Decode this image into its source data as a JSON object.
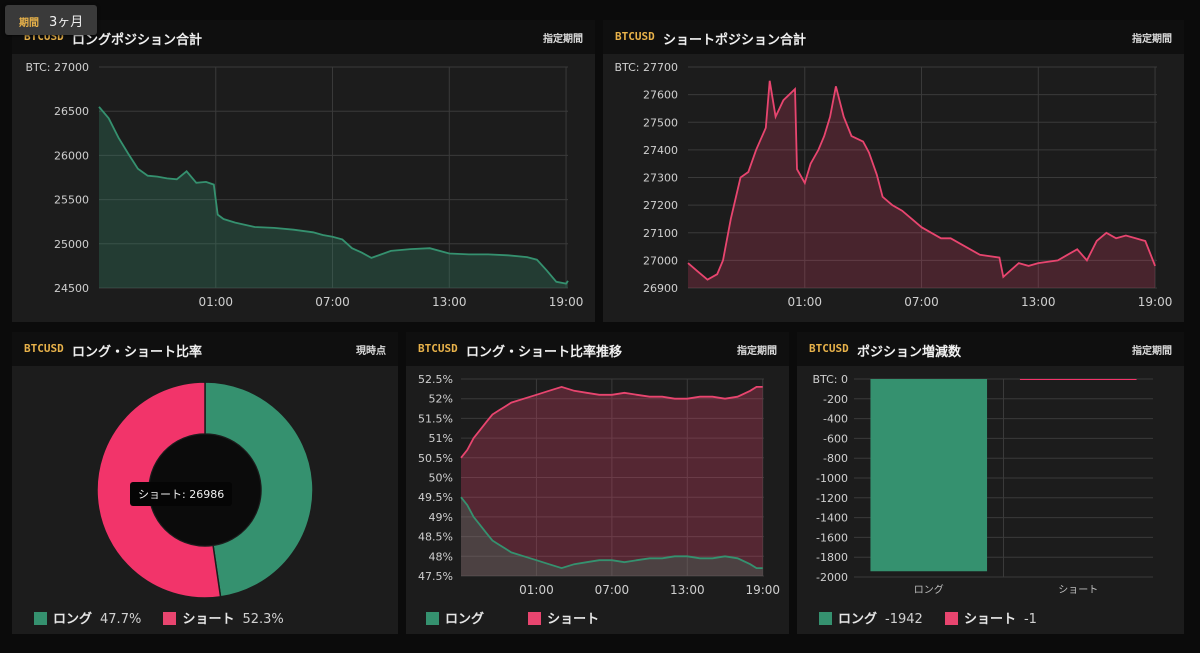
{
  "period": {
    "label": "期間",
    "value": "3ヶ月"
  },
  "panels": {
    "long_total": {
      "symbol": "BTCUSD",
      "title": "ロングポジション合計",
      "right": "指定期間"
    },
    "short_total": {
      "symbol": "BTCUSD",
      "title": "ショートポジション合計",
      "right": "指定期間"
    },
    "ratio": {
      "symbol": "BTCUSD",
      "title": "ロング・ショート比率",
      "right": "現時点"
    },
    "ratio_trend": {
      "symbol": "BTCUSD",
      "title": "ロング・ショート比率推移",
      "right": "指定期間"
    },
    "change": {
      "symbol": "BTCUSD",
      "title": "ポジション増減数",
      "right": "指定期間"
    }
  },
  "legend": {
    "long_name": "ロング",
    "short_name": "ショート",
    "ratio_long_value": "47.7%",
    "ratio_short_value": "52.3%",
    "change_long_value": "-1942",
    "change_short_value": "-1"
  },
  "tooltip": {
    "text": "ショート: 26986"
  },
  "colors": {
    "long": "#35916f",
    "short": "#f2346a",
    "short_line": "#e8456f",
    "grid": "#3a3a3a"
  },
  "chart_data": [
    {
      "id": "long_total",
      "type": "area",
      "ylabel": "BTC",
      "ylim": [
        24500,
        27000
      ],
      "y_ticks": [
        24500,
        25000,
        25500,
        26000,
        26500,
        27000
      ],
      "x_ticks": [
        "01:00",
        "07:00",
        "13:00",
        "19:00"
      ],
      "x_tick_positions": [
        6,
        12,
        18,
        24
      ],
      "x_range": [
        0,
        24.1
      ],
      "points": [
        [
          0,
          26550
        ],
        [
          0.5,
          26420
        ],
        [
          1,
          26200
        ],
        [
          1.5,
          26020
        ],
        [
          2,
          25850
        ],
        [
          2.5,
          25770
        ],
        [
          3,
          25760
        ],
        [
          3.5,
          25740
        ],
        [
          4,
          25730
        ],
        [
          4.5,
          25820
        ],
        [
          5,
          25690
        ],
        [
          5.5,
          25700
        ],
        [
          5.9,
          25670
        ],
        [
          6.1,
          25330
        ],
        [
          6.4,
          25280
        ],
        [
          7,
          25240
        ],
        [
          8,
          25190
        ],
        [
          9,
          25180
        ],
        [
          10,
          25160
        ],
        [
          11,
          25130
        ],
        [
          11.5,
          25100
        ],
        [
          12,
          25080
        ],
        [
          12.5,
          25050
        ],
        [
          13,
          24950
        ],
        [
          13.5,
          24900
        ],
        [
          14,
          24840
        ],
        [
          14.5,
          24880
        ],
        [
          15,
          24920
        ],
        [
          16,
          24940
        ],
        [
          17,
          24950
        ],
        [
          18,
          24890
        ],
        [
          19,
          24880
        ],
        [
          20,
          24880
        ],
        [
          21,
          24870
        ],
        [
          22,
          24850
        ],
        [
          22.5,
          24820
        ],
        [
          23,
          24700
        ],
        [
          23.5,
          24570
        ],
        [
          24,
          24550
        ],
        [
          24.1,
          24580
        ]
      ]
    },
    {
      "id": "short_total",
      "type": "area",
      "ylabel": "BTC",
      "ylim": [
        26900,
        27700
      ],
      "y_ticks": [
        26900,
        27000,
        27100,
        27200,
        27300,
        27400,
        27500,
        27600,
        27700
      ],
      "x_ticks": [
        "01:00",
        "07:00",
        "13:00",
        "19:00"
      ],
      "x_tick_positions": [
        6,
        12,
        18,
        24
      ],
      "x_range": [
        0,
        24.1
      ],
      "points": [
        [
          0,
          26990
        ],
        [
          0.5,
          26960
        ],
        [
          1,
          26930
        ],
        [
          1.5,
          26950
        ],
        [
          1.8,
          27000
        ],
        [
          2.2,
          27150
        ],
        [
          2.7,
          27300
        ],
        [
          3.1,
          27320
        ],
        [
          3.5,
          27400
        ],
        [
          4,
          27480
        ],
        [
          4.2,
          27650
        ],
        [
          4.5,
          27520
        ],
        [
          4.9,
          27580
        ],
        [
          5.5,
          27620
        ],
        [
          5.6,
          27330
        ],
        [
          6,
          27280
        ],
        [
          6.3,
          27350
        ],
        [
          6.7,
          27400
        ],
        [
          7,
          27450
        ],
        [
          7.3,
          27520
        ],
        [
          7.6,
          27630
        ],
        [
          8,
          27520
        ],
        [
          8.4,
          27450
        ],
        [
          9,
          27430
        ],
        [
          9.3,
          27390
        ],
        [
          9.7,
          27310
        ],
        [
          10,
          27230
        ],
        [
          10.5,
          27200
        ],
        [
          11,
          27180
        ],
        [
          11.5,
          27150
        ],
        [
          12,
          27120
        ],
        [
          12.5,
          27100
        ],
        [
          13,
          27080
        ],
        [
          13.5,
          27080
        ],
        [
          14,
          27060
        ],
        [
          15,
          27020
        ],
        [
          16,
          27010
        ],
        [
          16.2,
          26940
        ],
        [
          17,
          26990
        ],
        [
          17.5,
          26980
        ],
        [
          18,
          26990
        ],
        [
          19,
          27000
        ],
        [
          19.5,
          27020
        ],
        [
          20,
          27040
        ],
        [
          20.5,
          27000
        ],
        [
          21,
          27070
        ],
        [
          21.5,
          27100
        ],
        [
          22,
          27080
        ],
        [
          22.5,
          27090
        ],
        [
          23,
          27080
        ],
        [
          23.5,
          27070
        ],
        [
          24,
          26980
        ]
      ]
    },
    {
      "id": "ratio",
      "type": "pie",
      "slices": [
        {
          "name": "ロング",
          "value": 47.7
        },
        {
          "name": "ショート",
          "value": 52.3
        }
      ]
    },
    {
      "id": "ratio_trend",
      "type": "area",
      "ylim": [
        47.5,
        52.5
      ],
      "y_ticks": [
        47.5,
        48,
        48.5,
        49,
        49.5,
        50,
        50.5,
        51,
        51.5,
        52,
        52.5
      ],
      "x_ticks": [
        "01:00",
        "07:00",
        "13:00",
        "19:00"
      ],
      "x_tick_positions": [
        6,
        12,
        18,
        24
      ],
      "x_range": [
        0,
        24.1
      ],
      "series": [
        {
          "name": "ショート",
          "values": [
            [
              0,
              50.5
            ],
            [
              0.5,
              50.7
            ],
            [
              1,
              51.0
            ],
            [
              1.5,
              51.2
            ],
            [
              2,
              51.4
            ],
            [
              2.5,
              51.6
            ],
            [
              3,
              51.7
            ],
            [
              3.5,
              51.8
            ],
            [
              4,
              51.9
            ],
            [
              5,
              52.0
            ],
            [
              6,
              52.1
            ],
            [
              7,
              52.2
            ],
            [
              8,
              52.3
            ],
            [
              9,
              52.2
            ],
            [
              10,
              52.15
            ],
            [
              11,
              52.1
            ],
            [
              12,
              52.1
            ],
            [
              13,
              52.15
            ],
            [
              14,
              52.1
            ],
            [
              15,
              52.05
            ],
            [
              16,
              52.05
            ],
            [
              17,
              52.0
            ],
            [
              18,
              52.0
            ],
            [
              19,
              52.05
            ],
            [
              20,
              52.05
            ],
            [
              21,
              52.0
            ],
            [
              22,
              52.05
            ],
            [
              23,
              52.2
            ],
            [
              23.5,
              52.3
            ],
            [
              24,
              52.3
            ]
          ]
        },
        {
          "name": "ロング",
          "values": [
            [
              0,
              49.5
            ],
            [
              0.5,
              49.3
            ],
            [
              1,
              49.0
            ],
            [
              1.5,
              48.8
            ],
            [
              2,
              48.6
            ],
            [
              2.5,
              48.4
            ],
            [
              3,
              48.3
            ],
            [
              3.5,
              48.2
            ],
            [
              4,
              48.1
            ],
            [
              5,
              48.0
            ],
            [
              6,
              47.9
            ],
            [
              7,
              47.8
            ],
            [
              8,
              47.7
            ],
            [
              9,
              47.8
            ],
            [
              10,
              47.85
            ],
            [
              11,
              47.9
            ],
            [
              12,
              47.9
            ],
            [
              13,
              47.85
            ],
            [
              14,
              47.9
            ],
            [
              15,
              47.95
            ],
            [
              16,
              47.95
            ],
            [
              17,
              48.0
            ],
            [
              18,
              48.0
            ],
            [
              19,
              47.95
            ],
            [
              20,
              47.95
            ],
            [
              21,
              48.0
            ],
            [
              22,
              47.95
            ],
            [
              23,
              47.8
            ],
            [
              23.5,
              47.7
            ],
            [
              24,
              47.7
            ]
          ]
        }
      ]
    },
    {
      "id": "change",
      "type": "bar",
      "ylabel": "BTC",
      "ylim": [
        -2000,
        0
      ],
      "y_ticks": [
        0,
        -200,
        -400,
        -600,
        -800,
        -1000,
        -1200,
        -1400,
        -1600,
        -1800,
        -2000
      ],
      "categories": [
        "ロング",
        "ショート"
      ],
      "values": [
        -1942,
        -1
      ]
    }
  ]
}
